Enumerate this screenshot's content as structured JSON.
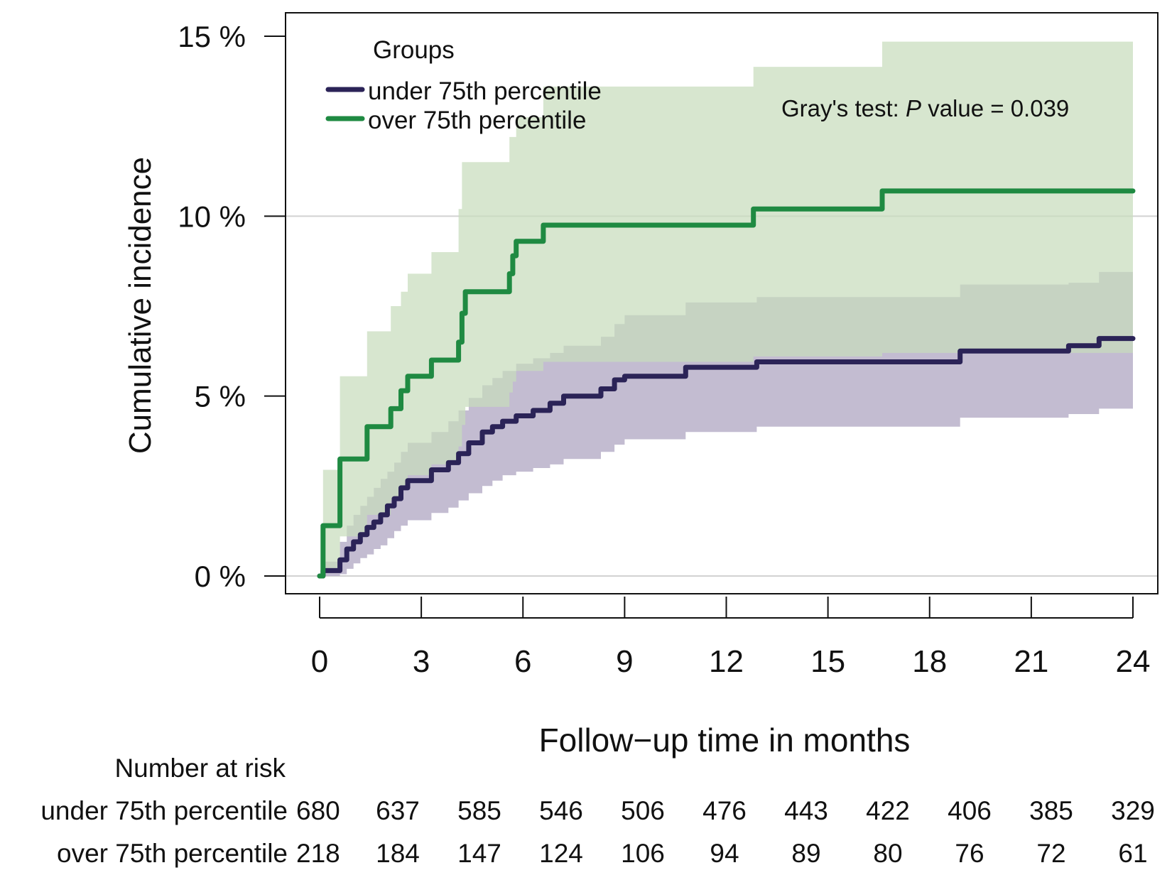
{
  "chart_data": {
    "type": "line",
    "step": true,
    "ylabel": "Cumulative incidence",
    "xlabel": "Follow−up time in months",
    "xlim": [
      0,
      24
    ],
    "ylim": [
      0,
      15
    ],
    "x_ticks": [
      0,
      3,
      6,
      9,
      12,
      15,
      18,
      21,
      24
    ],
    "y_ticks": [
      {
        "value": 0,
        "label": "0 %"
      },
      {
        "value": 5,
        "label": "5 %"
      },
      {
        "value": 10,
        "label": "10 %"
      },
      {
        "value": 15,
        "label": "15 %"
      }
    ],
    "gridlines_y": [
      0,
      10
    ],
    "legend": {
      "title": "Groups",
      "placement": "top-left",
      "entries": [
        "under 75th percentile",
        "over 75th percentile"
      ]
    },
    "annotation": {
      "prefix": "Gray's test: ",
      "italic": "P",
      "suffix": " value = 0.039"
    },
    "series": [
      {
        "name": "under 75th percentile",
        "color": "#2b2357",
        "band_color": "#b9b0c9",
        "x": [
          0,
          0.1,
          0.6,
          0.8,
          1.0,
          1.2,
          1.4,
          1.6,
          1.8,
          2.0,
          2.2,
          2.4,
          2.6,
          3.3,
          3.8,
          4.1,
          4.4,
          4.8,
          5.1,
          5.4,
          5.8,
          6.3,
          6.8,
          7.2,
          8.3,
          8.7,
          9.0,
          10.8,
          12.9,
          18.9,
          22.1,
          23.0,
          24.0
        ],
        "y": [
          0,
          0.15,
          0.45,
          0.75,
          0.95,
          1.15,
          1.35,
          1.5,
          1.7,
          1.95,
          2.15,
          2.45,
          2.65,
          2.95,
          3.15,
          3.4,
          3.7,
          4.0,
          4.15,
          4.3,
          4.45,
          4.6,
          4.8,
          5.0,
          5.2,
          5.45,
          5.55,
          5.8,
          5.95,
          6.25,
          6.4,
          6.6,
          6.6
        ],
        "lower": [
          0,
          0.0,
          0.05,
          0.2,
          0.35,
          0.5,
          0.6,
          0.75,
          0.85,
          1.05,
          1.25,
          1.4,
          1.55,
          1.75,
          1.9,
          2.1,
          2.3,
          2.5,
          2.65,
          2.8,
          2.9,
          3.0,
          3.1,
          3.25,
          3.45,
          3.65,
          3.8,
          4.0,
          4.15,
          4.4,
          4.5,
          4.65,
          4.65
        ],
        "upper": [
          0,
          0.4,
          0.95,
          1.4,
          1.7,
          1.95,
          2.2,
          2.45,
          2.7,
          2.9,
          3.15,
          3.45,
          3.7,
          4.0,
          4.3,
          4.6,
          4.95,
          5.3,
          5.5,
          5.7,
          5.9,
          6.05,
          6.2,
          6.4,
          6.65,
          7.0,
          7.25,
          7.6,
          7.75,
          8.1,
          8.15,
          8.45,
          8.45
        ]
      },
      {
        "name": "over 75th percentile",
        "color": "#1f8a42",
        "band_color": "#c8dcbc",
        "x": [
          0,
          0.1,
          0.6,
          1.4,
          2.1,
          2.4,
          2.6,
          3.3,
          4.1,
          4.2,
          4.3,
          5.6,
          5.7,
          5.8,
          6.6,
          12.8,
          16.6,
          24.0
        ],
        "y": [
          0,
          1.4,
          3.25,
          4.15,
          4.65,
          5.15,
          5.55,
          6.0,
          6.5,
          7.3,
          7.9,
          8.4,
          8.9,
          9.3,
          9.75,
          10.2,
          10.7,
          10.7
        ],
        "lower": [
          0,
          0.1,
          1.1,
          1.7,
          2.1,
          2.5,
          2.8,
          3.1,
          3.6,
          4.2,
          4.7,
          5.1,
          5.4,
          5.7,
          5.95,
          6.1,
          6.2,
          6.2
        ],
        "upper": [
          0,
          2.95,
          5.55,
          6.8,
          7.5,
          7.9,
          8.4,
          9.0,
          10.2,
          11.5,
          11.5,
          12.2,
          12.2,
          12.75,
          13.6,
          14.15,
          14.85,
          14.85
        ]
      }
    ],
    "risk_table": {
      "title": "Number at risk",
      "rows": [
        {
          "label": "under 75th percentile",
          "values": [
            680,
            637,
            585,
            546,
            506,
            476,
            443,
            422,
            406,
            385,
            329
          ]
        },
        {
          "label": "over 75th percentile",
          "values": [
            218,
            184,
            147,
            124,
            106,
            94,
            89,
            80,
            76,
            72,
            61
          ]
        }
      ]
    }
  }
}
